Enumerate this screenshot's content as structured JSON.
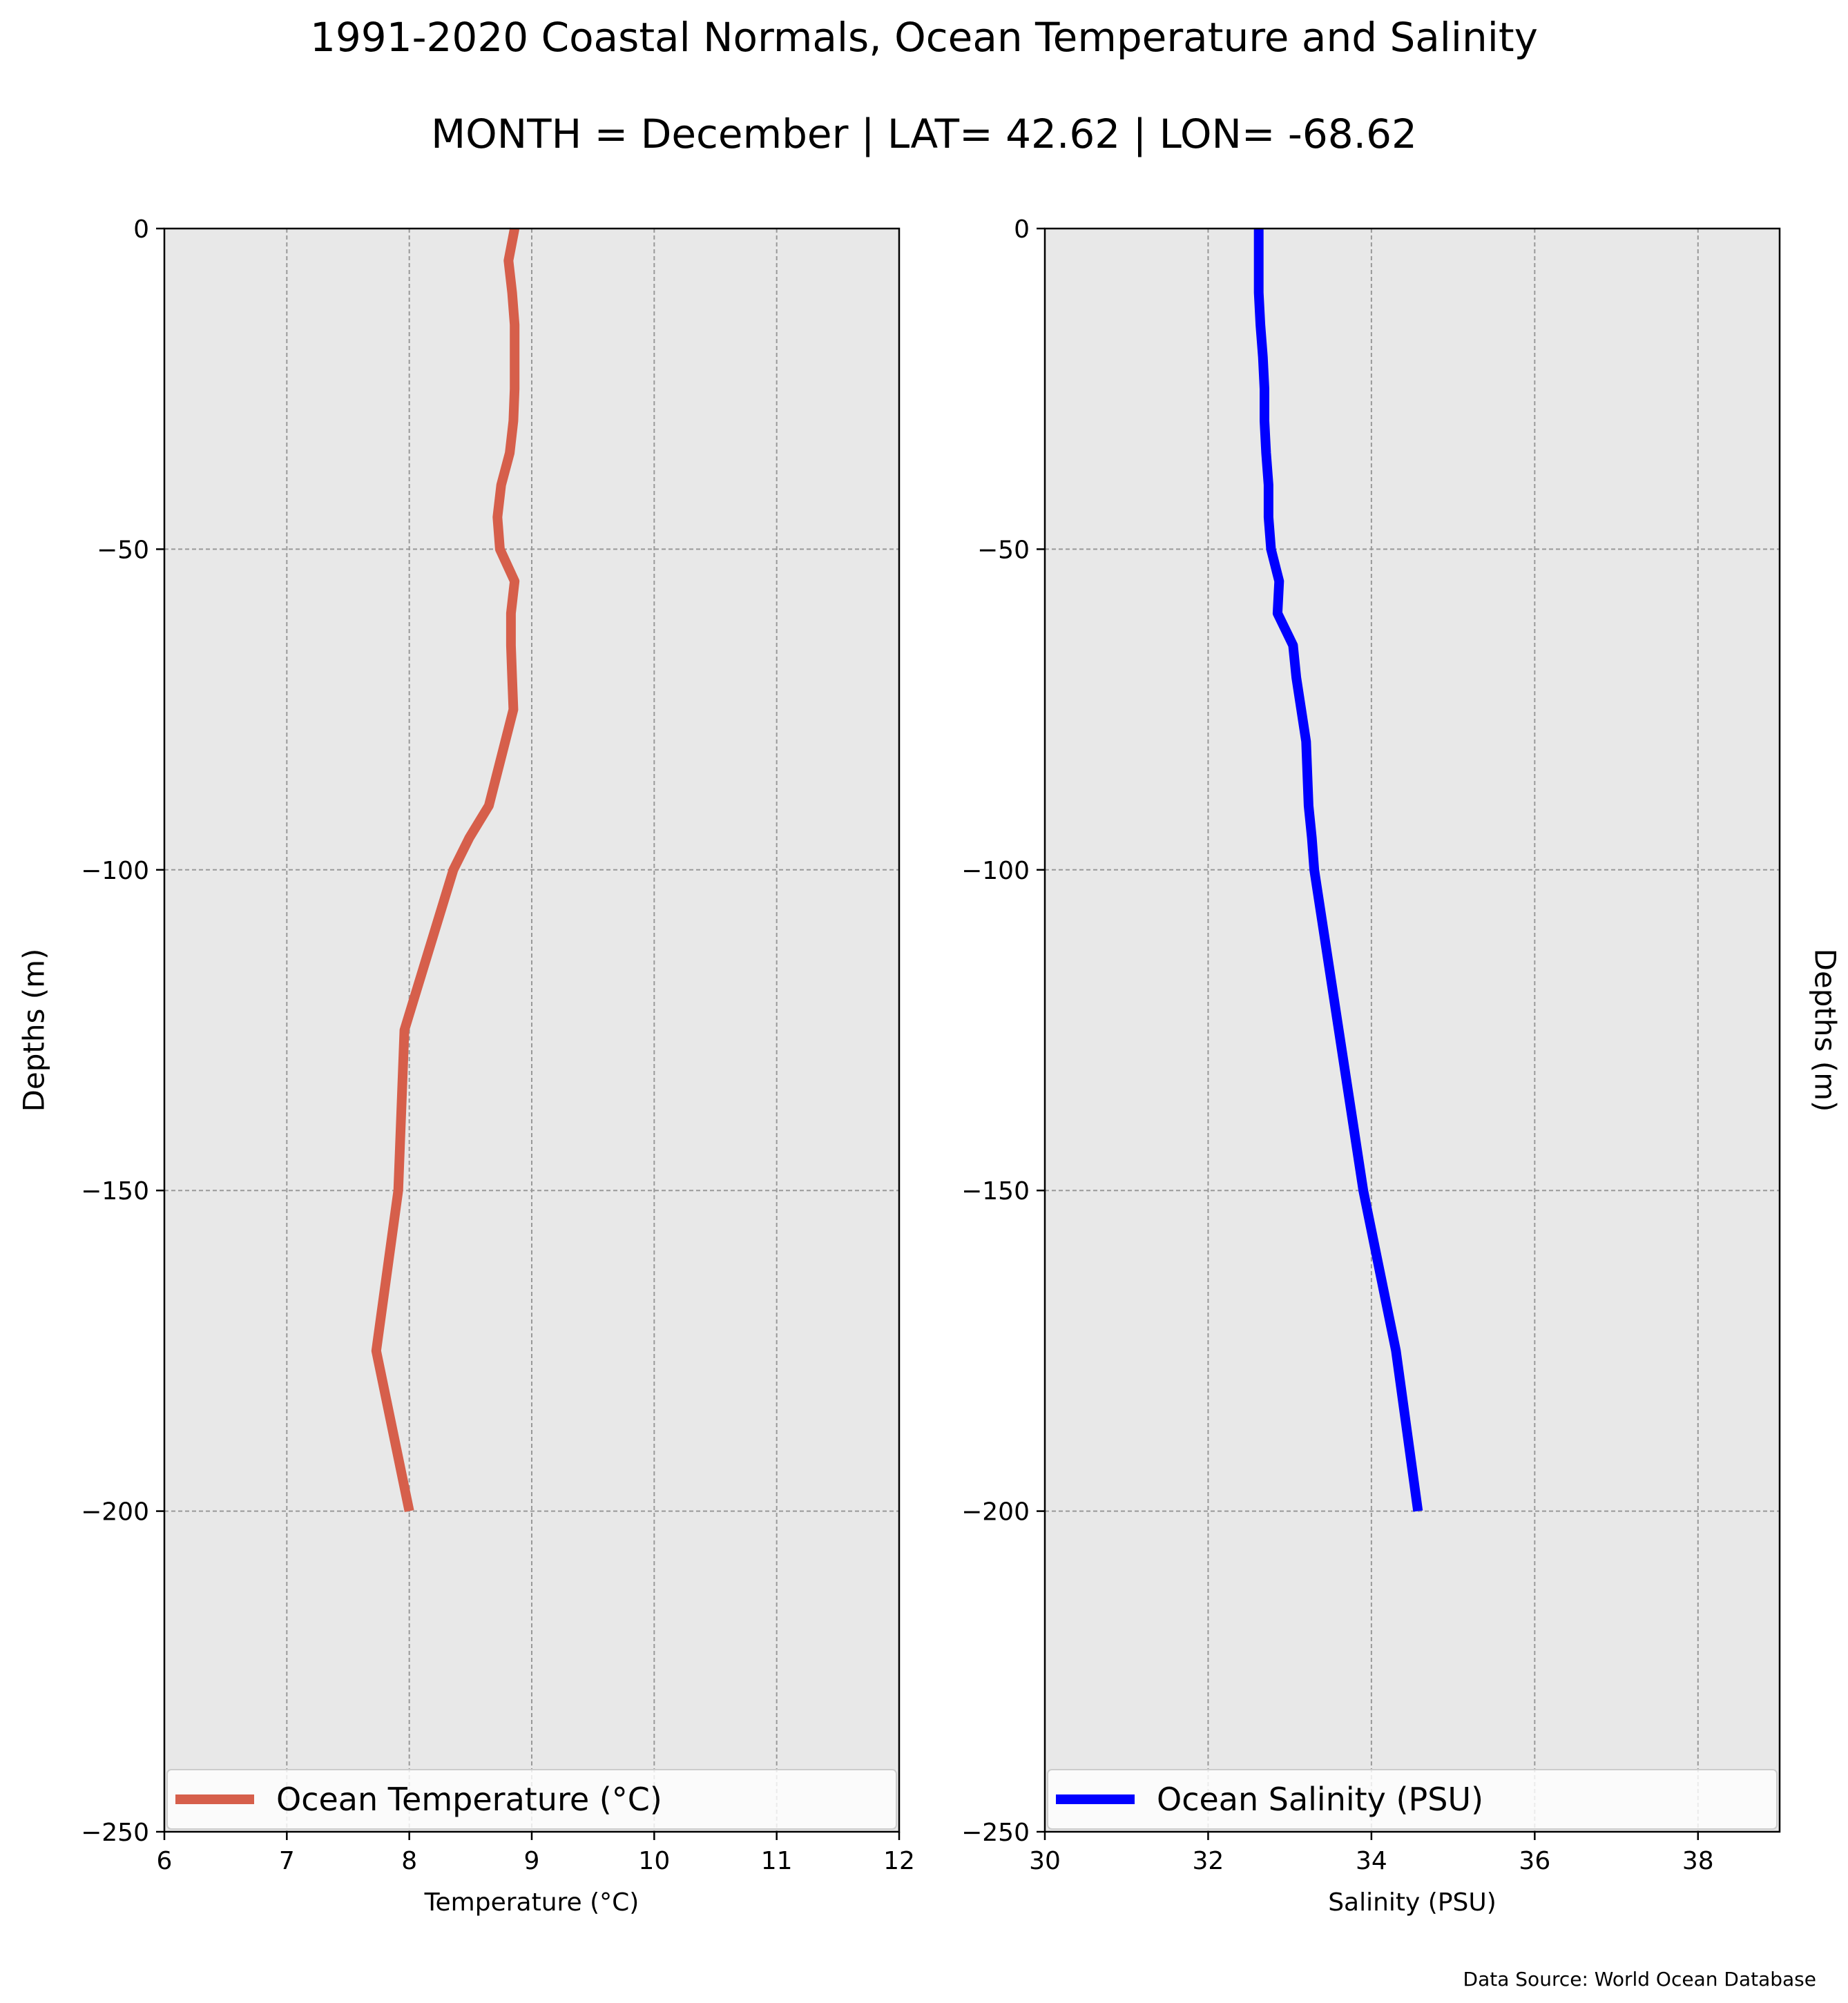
{
  "figure": {
    "title": "1991-2020 Coastal Normals, Ocean Temperature and Salinity",
    "subtitle": "MONTH = December | LAT= 42.62 | LON= -68.62",
    "source": "Data Source: World Ocean Database",
    "background": "#ffffff",
    "plot_background": "#e8e8e8",
    "grid_color": "#999999"
  },
  "chart_data": [
    {
      "type": "line",
      "orientation": "vertical-profile",
      "xlabel": "Temperature ($^\\circ$C)",
      "xlabel_display": "Temperature (°C)",
      "ylabel": "Depths (m)",
      "ylabel_side": "left",
      "xlim": [
        6,
        12
      ],
      "ylim": [
        -250,
        0
      ],
      "x_ticks": [
        "6",
        "7",
        "8",
        "9",
        "10",
        "11",
        "12"
      ],
      "x_tick_values": [
        6,
        7,
        8,
        9,
        10,
        11,
        12
      ],
      "y_ticks": [
        "0",
        "−50",
        "−100",
        "−150",
        "−200",
        "−250"
      ],
      "y_tick_values": [
        0,
        -50,
        -100,
        -150,
        -200,
        -250
      ],
      "grid": true,
      "legend_placement": "lower-center",
      "series": [
        {
          "name": "Ocean Temperature ($^\\circ$C)",
          "name_display": "Ocean Temperature (°C)",
          "color": "#d65f4b",
          "x": [
            8.86,
            8.81,
            8.84,
            8.86,
            8.86,
            8.86,
            8.85,
            8.82,
            8.75,
            8.72,
            8.74,
            8.86,
            8.83,
            8.83,
            8.84,
            8.85,
            8.65,
            8.49,
            8.36,
            7.96,
            7.91,
            7.73,
            8.0
          ],
          "y": [
            0,
            -5,
            -10,
            -15,
            -20,
            -25,
            -30,
            -35,
            -40,
            -45,
            -50,
            -55,
            -60,
            -65,
            -70,
            -75,
            -90,
            -95,
            -100,
            -125,
            -150,
            -175,
            -200
          ]
        }
      ]
    },
    {
      "type": "line",
      "orientation": "vertical-profile",
      "xlabel": "Salinity (PSU)",
      "ylabel": "Depths (m)",
      "ylabel_side": "right",
      "xlim": [
        30,
        39
      ],
      "ylim": [
        -250,
        0
      ],
      "x_ticks": [
        "30",
        "32",
        "34",
        "36",
        "38"
      ],
      "x_tick_values": [
        30,
        32,
        34,
        36,
        38
      ],
      "y_ticks": [
        "0",
        "−50",
        "−100",
        "−150",
        "−200",
        "−250"
      ],
      "y_tick_values": [
        0,
        -50,
        -100,
        -150,
        -200,
        -250
      ],
      "grid": true,
      "legend_placement": "lower-center",
      "series": [
        {
          "name": "Ocean Salinity (PSU)",
          "color": "#0000ff",
          "x": [
            32.62,
            32.62,
            32.62,
            32.64,
            32.67,
            32.69,
            32.69,
            32.71,
            32.74,
            32.74,
            32.77,
            32.87,
            32.85,
            33.04,
            33.08,
            33.14,
            33.2,
            33.23,
            33.27,
            33.3,
            33.6,
            33.9,
            34.3,
            34.57
          ],
          "y": [
            0,
            -5,
            -10,
            -15,
            -20,
            -25,
            -30,
            -35,
            -40,
            -45,
            -50,
            -55,
            -60,
            -65,
            -70,
            -75,
            -80,
            -90,
            -95,
            -100,
            -125,
            -150,
            -175,
            -200
          ]
        }
      ]
    }
  ]
}
